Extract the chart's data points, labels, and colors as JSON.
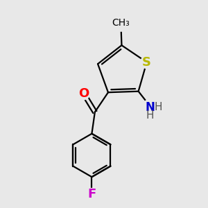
{
  "background_color": "#e8e8e8",
  "bond_color": "#000000",
  "bond_width": 1.6,
  "atoms": {
    "S": {
      "color": "#b8b800",
      "fontsize": 13,
      "fontweight": "bold"
    },
    "O": {
      "color": "#ff0000",
      "fontsize": 13,
      "fontweight": "bold"
    },
    "N": {
      "color": "#0000cc",
      "fontsize": 12,
      "fontweight": "bold"
    },
    "F": {
      "color": "#cc00cc",
      "fontsize": 13,
      "fontweight": "bold"
    },
    "H": {
      "color": "#555555",
      "fontsize": 11,
      "fontweight": "normal"
    },
    "methyl": {
      "color": "#000000",
      "fontsize": 11,
      "fontweight": "normal"
    }
  },
  "figsize": [
    3.0,
    3.0
  ],
  "dpi": 100,
  "xlim": [
    0,
    10
  ],
  "ylim": [
    0,
    10
  ]
}
